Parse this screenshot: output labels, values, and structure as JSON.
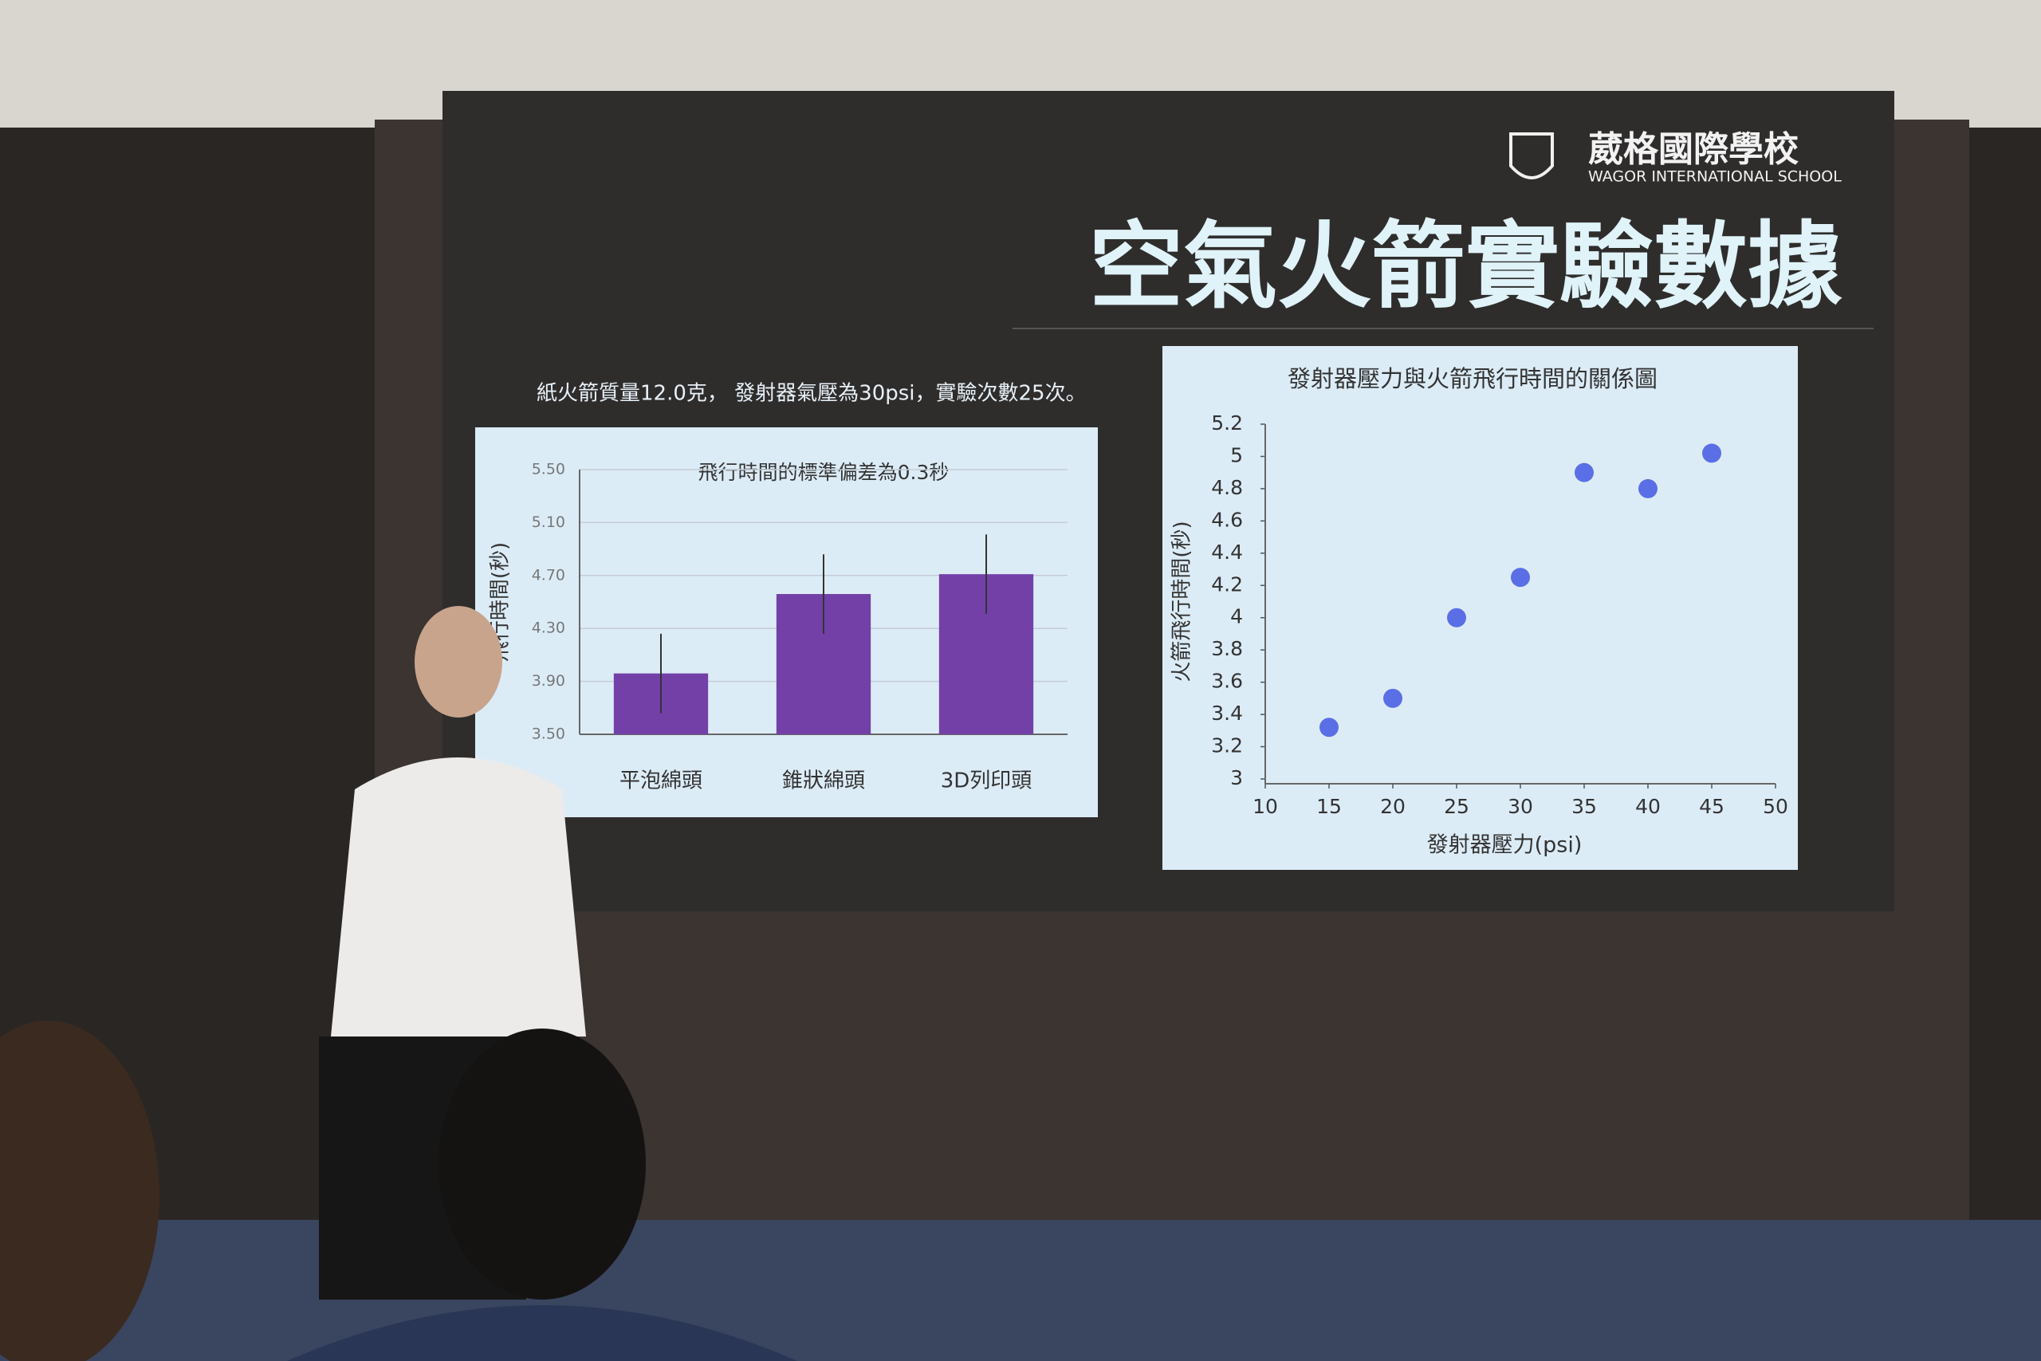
{
  "header": {
    "school_zh": "葳格國際學校",
    "school_en": "WAGOR INTERNATIONAL SCHOOL",
    "title": "空氣火箭實驗數據",
    "note": "紙火箭質量12.0克， 發射器氣壓為30psi，實驗次數25次。"
  },
  "chart_data": [
    {
      "type": "bar",
      "title": "飛行時間的標準偏差為0.3秒",
      "y_label": "飛行時間(秒)",
      "categories": [
        "平泡綿頭",
        "錐狀綿頭",
        "3D列印頭"
      ],
      "values": [
        3.96,
        4.56,
        4.71
      ],
      "errors": [
        0.3,
        0.3,
        0.3
      ],
      "color": "#7340a8",
      "ylim": [
        3.5,
        5.5
      ],
      "yticks": [
        {
          "value": 3.5,
          "label": "3.50"
        },
        {
          "value": 3.9,
          "label": "3.90"
        },
        {
          "value": 4.3,
          "label": "4.30"
        },
        {
          "value": 4.7,
          "label": "4.70"
        },
        {
          "value": 5.1,
          "label": "5.10"
        },
        {
          "value": 5.5,
          "label": "5.50"
        }
      ],
      "grid": true
    },
    {
      "type": "scatter",
      "title": "發射器壓力與火箭飛行時間的關係圖",
      "x_label": "發射器壓力(psi)",
      "y_label": "火箭飛行時間(秒)",
      "x": [
        15,
        20,
        25,
        30,
        35,
        40,
        45
      ],
      "values": [
        3.32,
        3.5,
        4.0,
        4.25,
        4.9,
        4.8,
        5.02
      ],
      "color": "#5a6fe6",
      "xlim": [
        10,
        50
      ],
      "xticks": [
        10,
        15,
        20,
        25,
        30,
        35,
        40,
        45,
        50
      ],
      "ylim": [
        3,
        5.2
      ],
      "yticks": [
        3,
        3.2,
        3.4,
        3.6,
        3.8,
        4,
        4.2,
        4.4,
        4.6,
        4.8,
        5,
        5.2
      ],
      "grid": false
    }
  ]
}
